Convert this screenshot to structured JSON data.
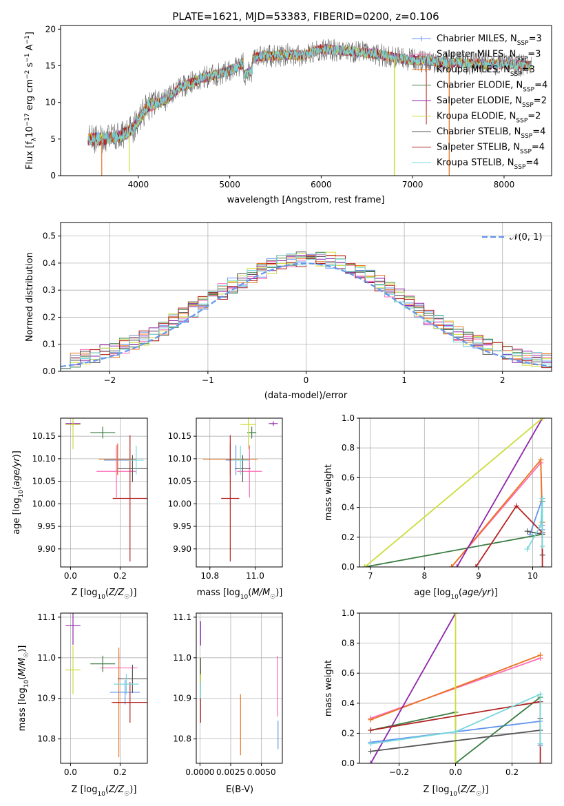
{
  "figure_title": "PLATE=1621, MJD=53383, FIBERID=0200, z=0.106",
  "colors": {
    "series": [
      "#6495ed",
      "#ff69b4",
      "#e8741e",
      "#3a7d44",
      "#8e24aa",
      "#cddc39",
      "#555555",
      "#b22222",
      "#76d7dc"
    ],
    "normal_curve": "#6495ed",
    "grid": "#b0b0b0"
  },
  "legend_labels": [
    {
      "prefix": "Chabrier MILES, N",
      "sub": "SSP",
      "suffix": "=3"
    },
    {
      "prefix": "Salpeter MILES, N",
      "sub": "SSP",
      "suffix": "=3"
    },
    {
      "prefix": "Kroupa MILES, N",
      "sub": "SSP",
      "suffix": "=3"
    },
    {
      "prefix": "Chabrier ELODIE, N",
      "sub": "SSP",
      "suffix": "=4"
    },
    {
      "prefix": "Salpeter ELODIE, N",
      "sub": "SSP",
      "suffix": "=2"
    },
    {
      "prefix": "Kroupa ELODIE, N",
      "sub": "SSP",
      "suffix": "=2"
    },
    {
      "prefix": "Chabrier STELIB, N",
      "sub": "SSP",
      "suffix": "=4"
    },
    {
      "prefix": "Salpeter STELIB, N",
      "sub": "SSP",
      "suffix": "=4"
    },
    {
      "prefix": "Kroupa STELIB, N",
      "sub": "SSP",
      "suffix": "=4"
    }
  ],
  "chart_data": [
    {
      "id": "spectrum",
      "type": "line",
      "xlabel": "wavelength [Angstrom, rest frame]",
      "ylabel": "Flux [f_λ 10^-17 erg cm^-2 s^-1 A^-1]",
      "xlim": [
        3150,
        8520
      ],
      "ylim": [
        0,
        20.5
      ],
      "xticks": [
        4000,
        5000,
        6000,
        7000,
        8000
      ],
      "yticks": [
        0,
        5,
        10,
        15,
        20
      ],
      "grid": false,
      "legend": "top-right",
      "continuum": [
        [
          3450,
          5.0
        ],
        [
          3600,
          5.0
        ],
        [
          3800,
          5.3
        ],
        [
          3950,
          6.5
        ],
        [
          4100,
          9.5
        ],
        [
          4300,
          10.3
        ],
        [
          4450,
          12.0
        ],
        [
          4700,
          13.3
        ],
        [
          5000,
          14.3
        ],
        [
          5300,
          16.2
        ],
        [
          5600,
          16.5
        ],
        [
          5800,
          16.4
        ],
        [
          6000,
          17.3
        ],
        [
          6300,
          17.0
        ],
        [
          6600,
          16.6
        ],
        [
          6900,
          15.9
        ],
        [
          7200,
          15.6
        ],
        [
          7600,
          15.3
        ],
        [
          8000,
          15.2
        ],
        [
          8300,
          15.0
        ]
      ],
      "spikes": [
        {
          "x": 3600,
          "y": 0
        },
        {
          "x": 3900,
          "y": 0.5
        },
        {
          "x": 6800,
          "y": 0
        },
        {
          "x": 7400,
          "y": 0
        }
      ]
    },
    {
      "id": "residuals",
      "type": "line",
      "xlabel": "(data-model)/error",
      "ylabel": "Normed distribution",
      "xlim": [
        -2.5,
        2.5
      ],
      "ylim": [
        0,
        0.55
      ],
      "xticks": [
        -2,
        -1,
        0,
        1,
        2
      ],
      "yticks": [
        0.0,
        0.1,
        0.2,
        0.3,
        0.4,
        0.5
      ],
      "grid": true,
      "legend": "top-right",
      "series": [
        {
          "name": "N(0,1)"
        }
      ]
    },
    {
      "id": "age_vs_Z",
      "type": "scatter",
      "xlabel": "Z [log10(Z/Z☉)]",
      "ylabel": "age  [log10(age/yr)]",
      "xlim": [
        -0.04,
        0.31
      ],
      "ylim": [
        9.86,
        10.19
      ],
      "xticks": [
        0.0,
        0.2
      ],
      "yticks": [
        9.9,
        9.95,
        10.0,
        10.05,
        10.1,
        10.15
      ],
      "grid": true,
      "points": [
        {
          "x": 0.19,
          "y": 10.097,
          "xerr": 0.055,
          "yerr": 0.033
        },
        {
          "x": 0.185,
          "y": 10.072,
          "xerr": 0.08,
          "yerr": 0.058
        },
        {
          "x": 0.19,
          "y": 10.099,
          "xerr": 0.075,
          "yerr": 0.035
        },
        {
          "x": 0.13,
          "y": 10.158,
          "xerr": 0.05,
          "yerr": 0.013
        },
        {
          "x": 0.01,
          "y": 10.178,
          "xerr": 0.03,
          "yerr": 0.005
        },
        {
          "x": 0.01,
          "y": 10.176,
          "xerr": 0.03,
          "yerr": 0.055
        },
        {
          "x": 0.25,
          "y": 10.078,
          "xerr": 0.06,
          "yerr": 0.03
        },
        {
          "x": 0.24,
          "y": 10.012,
          "xerr": 0.07,
          "yerr": 0.14
        },
        {
          "x": 0.265,
          "y": 10.097,
          "xerr": 0.03,
          "yerr": 0.032
        }
      ]
    },
    {
      "id": "age_vs_mass",
      "type": "scatter",
      "xlabel": "mass [log10(M/M☉)]",
      "ylabel": "",
      "xlim": [
        10.74,
        11.12
      ],
      "ylim": [
        9.86,
        10.19
      ],
      "xticks": [
        10.8,
        11.0
      ],
      "yticks": [
        9.9,
        9.95,
        10.0,
        10.05,
        10.1,
        10.15
      ],
      "grid": true,
      "points": [
        {
          "x": 10.915,
          "y": 10.097,
          "xerr": 0.045,
          "yerr": 0.033
        },
        {
          "x": 10.975,
          "y": 10.072,
          "xerr": 0.055,
          "yerr": 0.058
        },
        {
          "x": 10.89,
          "y": 10.099,
          "xerr": 0.12,
          "yerr": 0.035
        },
        {
          "x": 10.985,
          "y": 10.158,
          "xerr": 0.02,
          "yerr": 0.013
        },
        {
          "x": 11.08,
          "y": 10.178,
          "xerr": 0.02,
          "yerr": 0.005
        },
        {
          "x": 10.97,
          "y": 10.176,
          "xerr": 0.035,
          "yerr": 0.055
        },
        {
          "x": 10.945,
          "y": 10.078,
          "xerr": 0.035,
          "yerr": 0.03
        },
        {
          "x": 10.89,
          "y": 10.012,
          "xerr": 0.04,
          "yerr": 0.14
        },
        {
          "x": 10.935,
          "y": 10.097,
          "xerr": 0.04,
          "yerr": 0.032
        }
      ]
    },
    {
      "id": "massweight_vs_age",
      "type": "line",
      "xlabel": "age  [log10(age/yr)]",
      "ylabel": "mass weight",
      "xlim": [
        6.8,
        10.35
      ],
      "ylim": [
        0,
        1.0
      ],
      "xticks": [
        7,
        8,
        9,
        10
      ],
      "yticks": [
        0.0,
        0.2,
        0.4,
        0.6,
        0.8,
        1.0
      ],
      "grid": true,
      "series": [
        {
          "points": [
            [
              9.95,
              0.22
            ],
            [
              10.18,
              0.46
            ],
            [
              10.18,
              0.25
            ]
          ]
        },
        {
          "points": [
            [
              8.5,
              0.0
            ],
            [
              10.15,
              0.7
            ],
            [
              10.18,
              0.28
            ]
          ]
        },
        {
          "points": [
            [
              8.5,
              0.0
            ],
            [
              10.15,
              0.72
            ],
            [
              10.18,
              0.3
            ]
          ]
        },
        {
          "points": [
            [
              6.9,
              0.0
            ],
            [
              10.18,
              0.22
            ],
            [
              10.18,
              0.44
            ]
          ]
        },
        {
          "points": [
            [
              8.6,
              0.0
            ],
            [
              10.18,
              1.0
            ]
          ]
        },
        {
          "points": [
            [
              6.9,
              0.0
            ],
            [
              10.18,
              1.0
            ]
          ]
        },
        {
          "points": [
            [
              10.18,
              0.08
            ],
            [
              10.18,
              0.22
            ],
            [
              9.9,
              0.24
            ]
          ]
        },
        {
          "points": [
            [
              8.95,
              0.0
            ],
            [
              9.7,
              0.41
            ],
            [
              10.18,
              0.23
            ],
            [
              10.18,
              0.0
            ]
          ]
        },
        {
          "points": [
            [
              9.9,
              0.12
            ],
            [
              10.15,
              0.28
            ],
            [
              10.18,
              0.46
            ],
            [
              10.18,
              0.14
            ]
          ]
        }
      ]
    },
    {
      "id": "mass_vs_Z",
      "type": "scatter",
      "xlabel": "Z [log10(Z/Z☉)]",
      "ylabel": "mass [log10(M/M☉)]",
      "xlim": [
        -0.04,
        0.31
      ],
      "ylim": [
        10.74,
        11.11
      ],
      "xticks": [
        0.0,
        0.2
      ],
      "yticks": [
        10.8,
        10.9,
        11.0,
        11.1
      ],
      "grid": true,
      "points": [
        {
          "x": 0.22,
          "y": 10.915,
          "xerr": 0.06,
          "yerr": 0.03
        },
        {
          "x": 0.195,
          "y": 10.975,
          "xerr": 0.075,
          "yerr": 0.035
        },
        {
          "x": 0.195,
          "y": 10.89,
          "xerr": 0.03,
          "yerr": 0.135
        },
        {
          "x": 0.13,
          "y": 10.985,
          "xerr": 0.05,
          "yerr": 0.02
        },
        {
          "x": 0.01,
          "y": 11.08,
          "xerr": 0.03,
          "yerr": 0.048
        },
        {
          "x": 0.01,
          "y": 10.97,
          "xerr": 0.03,
          "yerr": 0.06
        },
        {
          "x": 0.25,
          "y": 10.948,
          "xerr": 0.06,
          "yerr": 0.035
        },
        {
          "x": 0.24,
          "y": 10.89,
          "xerr": 0.07,
          "yerr": 0.05
        },
        {
          "x": 0.225,
          "y": 10.935,
          "xerr": 0.05,
          "yerr": 0.025
        }
      ]
    },
    {
      "id": "mass_vs_ebv",
      "type": "scatter",
      "xlabel": "E(B-V)",
      "ylabel": "",
      "xlim": [
        -0.0003,
        0.0067
      ],
      "ylim": [
        10.74,
        11.11
      ],
      "xticks": [
        0.0,
        0.0025,
        0.005
      ],
      "xticklabels": [
        "0.0000",
        "0.0025",
        "0.0050"
      ],
      "yticks": [
        10.8,
        10.9,
        11.0,
        11.1
      ],
      "grid": true,
      "points": [
        {
          "x": 0.00635,
          "y": 10.81,
          "xerr": 0,
          "yerr": 0.035
        },
        {
          "x": 0.0063,
          "y": 10.93,
          "xerr": 0,
          "yerr": 0.075
        },
        {
          "x": 0.0033,
          "y": 10.835,
          "xerr": 0,
          "yerr": 0.075
        },
        {
          "x": 5e-05,
          "y": 10.955,
          "xerr": 0,
          "yerr": 0.02
        },
        {
          "x": 5e-05,
          "y": 11.06,
          "xerr": 0,
          "yerr": 0.03
        },
        {
          "x": 5e-05,
          "y": 10.96,
          "xerr": 0,
          "yerr": 0.04
        },
        {
          "x": 5e-05,
          "y": 10.98,
          "xerr": 0,
          "yerr": 0.02
        },
        {
          "x": 5e-05,
          "y": 10.87,
          "xerr": 0,
          "yerr": 0.03
        },
        {
          "x": 5e-05,
          "y": 10.92,
          "xerr": 0,
          "yerr": 0.02
        }
      ]
    },
    {
      "id": "massweight_vs_Z",
      "type": "line",
      "xlabel": "Z [log10(Z/Z☉)]",
      "ylabel": "mass weight",
      "xlim": [
        -0.34,
        0.34
      ],
      "ylim": [
        0,
        1.0
      ],
      "xticks": [
        -0.2,
        0.0,
        0.2
      ],
      "yticks": [
        0.0,
        0.2,
        0.4,
        0.6,
        0.8,
        1.0
      ],
      "grid": true,
      "series": [
        {
          "points": [
            [
              -0.3,
              0.14
            ],
            [
              0.3,
              0.28
            ],
            [
              0.3,
              0.12
            ]
          ]
        },
        {
          "points": [
            [
              -0.3,
              0.3
            ],
            [
              0.3,
              0.7
            ]
          ]
        },
        {
          "points": [
            [
              -0.3,
              0.29
            ],
            [
              0.3,
              0.72
            ]
          ]
        },
        {
          "points": [
            [
              -0.3,
              0.22
            ],
            [
              0.0,
              0.34
            ],
            [
              0.0,
              0.0
            ],
            [
              0.3,
              0.44
            ]
          ]
        },
        {
          "points": [
            [
              -0.3,
              0.0
            ],
            [
              0.0,
              1.0
            ]
          ]
        },
        {
          "points": [
            [
              0.0,
              0.0
            ],
            [
              0.0,
              1.0
            ]
          ]
        },
        {
          "points": [
            [
              -0.3,
              0.08
            ],
            [
              0.3,
              0.22
            ],
            [
              0.3,
              0.3
            ]
          ]
        },
        {
          "points": [
            [
              -0.3,
              0.22
            ],
            [
              0.3,
              0.41
            ],
            [
              0.3,
              0.0
            ]
          ]
        },
        {
          "points": [
            [
              -0.3,
              0.13
            ],
            [
              0.0,
              0.21
            ],
            [
              0.3,
              0.46
            ],
            [
              0.3,
              0.13
            ]
          ]
        }
      ]
    }
  ]
}
